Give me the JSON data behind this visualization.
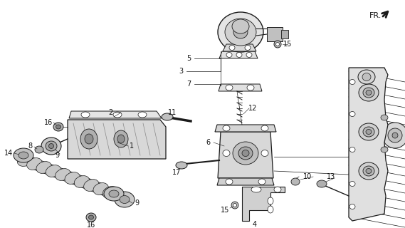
{
  "bg_color": "#ffffff",
  "line_color": "#1a1a1a",
  "label_color": "#111111",
  "fr_label": "FR.",
  "fig_width": 5.69,
  "fig_height": 3.2,
  "dpi": 100
}
